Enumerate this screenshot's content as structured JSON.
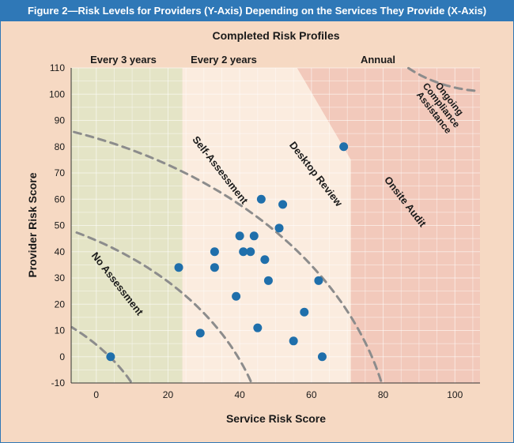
{
  "figure_title": "Figure 2—Risk Levels for Providers (Y-Axis) Depending on the Services They Provide (X-Axis)",
  "chart_data": {
    "type": "scatter",
    "title": "Completed Risk Profiles",
    "xlabel": "Service Risk Score",
    "ylabel": "Provider Risk Score",
    "xlim": [
      -7,
      107
    ],
    "ylim": [
      -10,
      110
    ],
    "x_ticks": [
      0,
      20,
      40,
      60,
      80,
      100
    ],
    "y_ticks": [
      -10,
      0,
      10,
      20,
      30,
      40,
      50,
      60,
      70,
      80,
      90,
      100,
      110
    ],
    "frequency_labels": [
      "Every 3 years",
      "Every 2 years",
      "Annual"
    ],
    "zone_labels": [
      "No Assessment",
      "Self-Assessment",
      "Desktop Review",
      "Onsite Audit",
      "Ongoing Compliance Assistance"
    ],
    "zone_colors": {
      "every_3_years": "#e4e4c6",
      "every_2_years": "#fbecdf",
      "annual": "#f2c9bb",
      "plot_bg": "#f3d6c6"
    },
    "point_color": "#1f6fab",
    "points": [
      {
        "x": 4,
        "y": 0
      },
      {
        "x": 23,
        "y": 34
      },
      {
        "x": 29,
        "y": 9
      },
      {
        "x": 33,
        "y": 34
      },
      {
        "x": 33,
        "y": 40
      },
      {
        "x": 39,
        "y": 23
      },
      {
        "x": 40,
        "y": 46
      },
      {
        "x": 41,
        "y": 40
      },
      {
        "x": 43,
        "y": 40
      },
      {
        "x": 44,
        "y": 46
      },
      {
        "x": 45,
        "y": 11
      },
      {
        "x": 46,
        "y": 60
      },
      {
        "x": 47,
        "y": 37
      },
      {
        "x": 48,
        "y": 29
      },
      {
        "x": 51,
        "y": 49
      },
      {
        "x": 52,
        "y": 58
      },
      {
        "x": 55,
        "y": 6
      },
      {
        "x": 58,
        "y": 17
      },
      {
        "x": 62,
        "y": 29
      },
      {
        "x": 63,
        "y": 0
      },
      {
        "x": 69,
        "y": 80
      }
    ]
  }
}
